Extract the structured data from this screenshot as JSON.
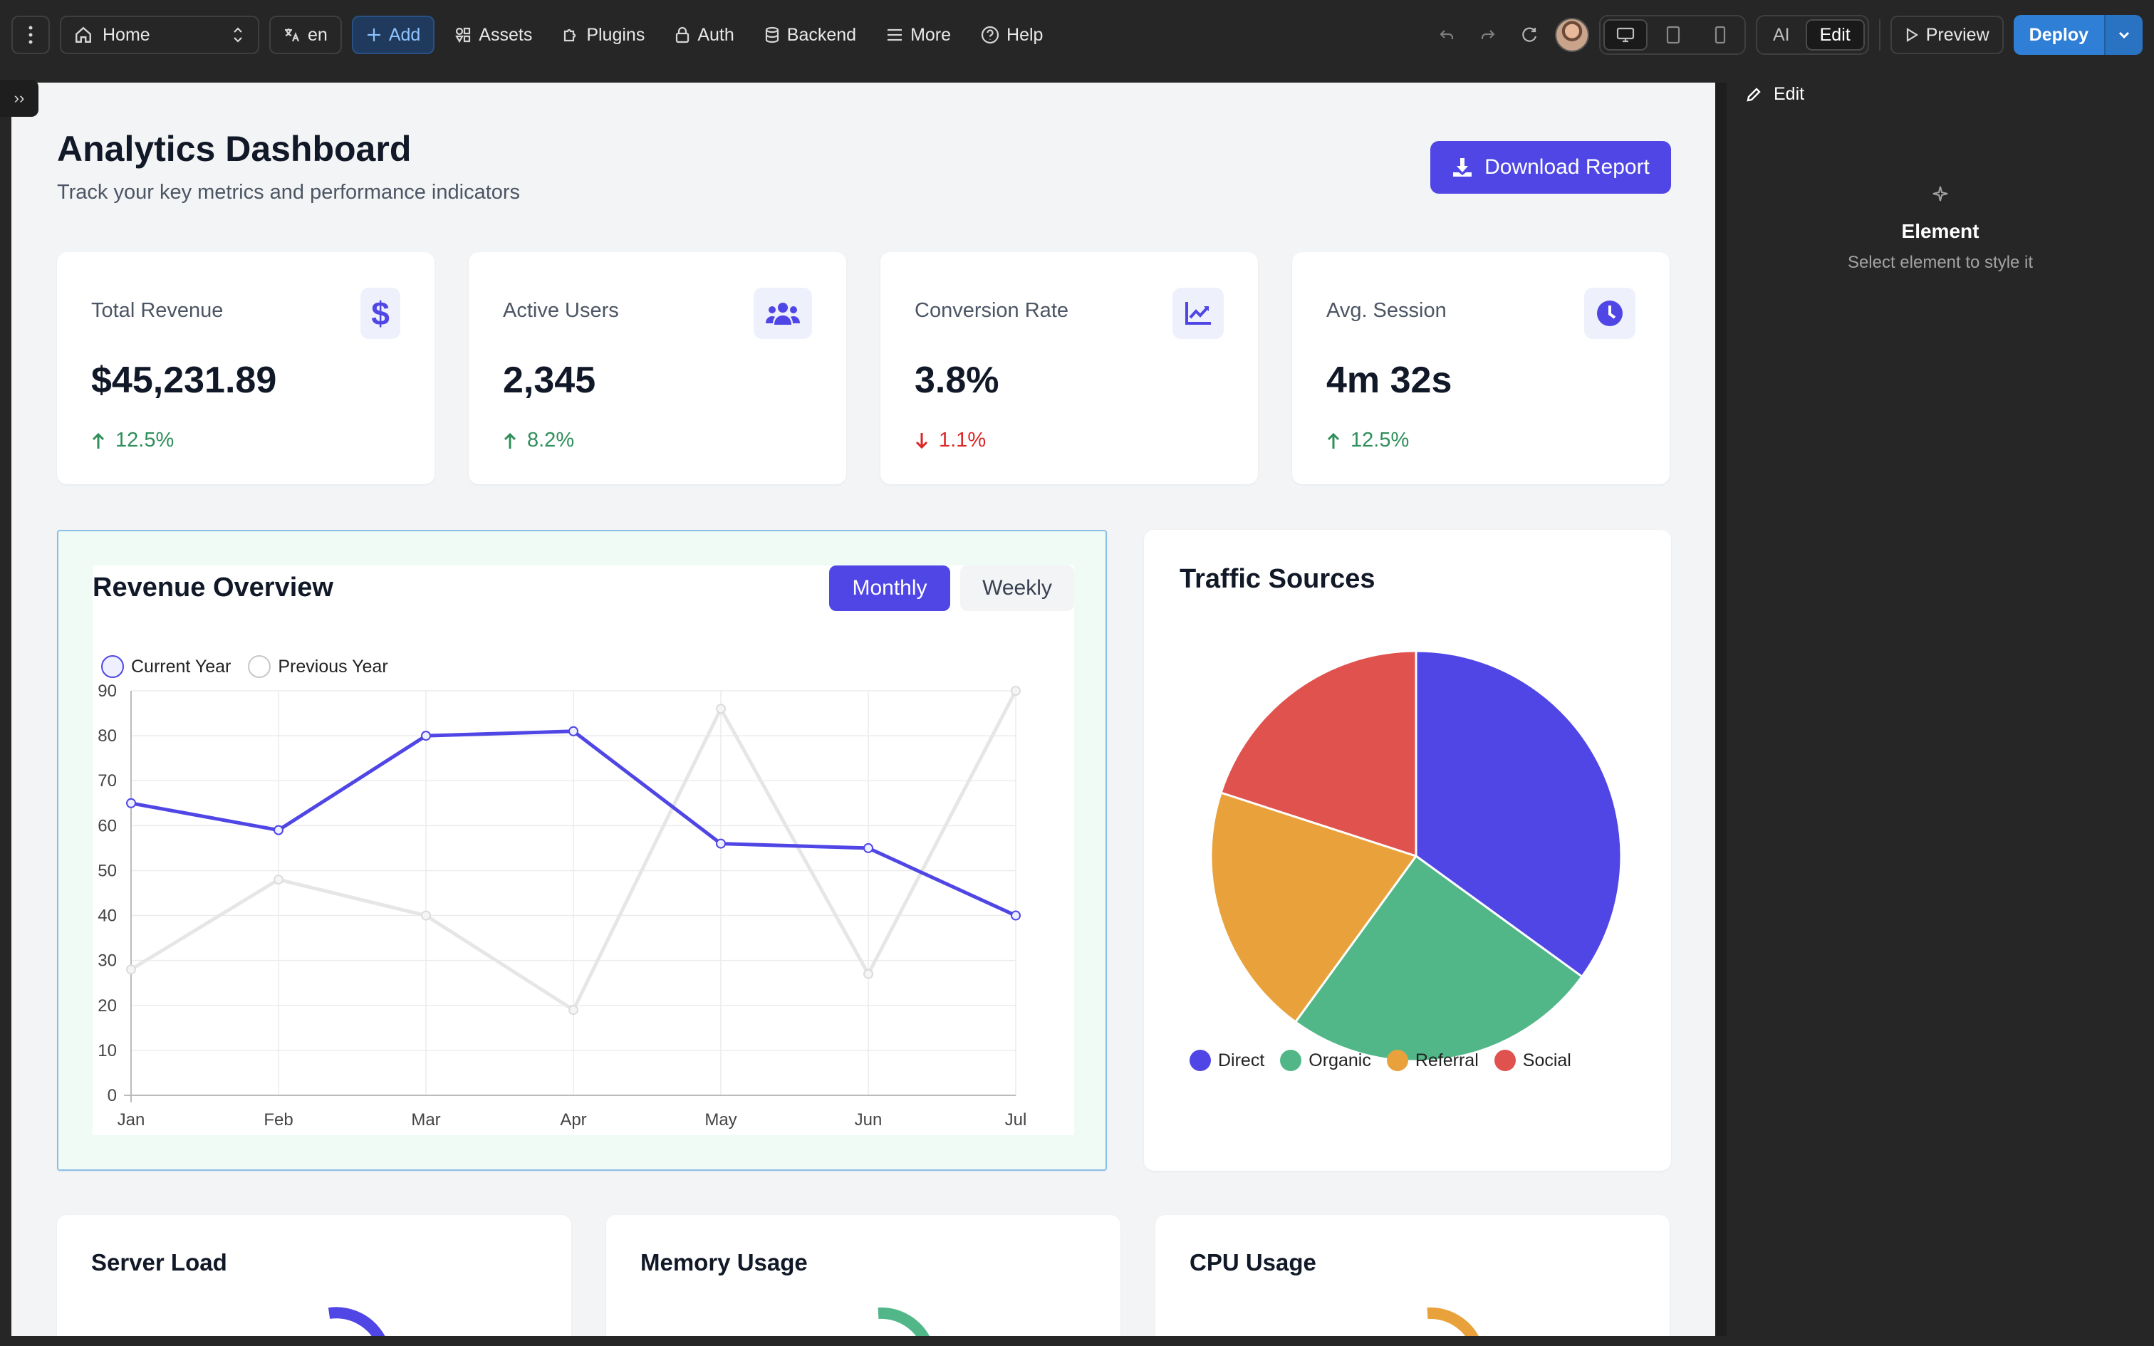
{
  "toolbar": {
    "page_select": "Home",
    "language": "en",
    "add": "Add",
    "assets": "Assets",
    "plugins": "Plugins",
    "auth": "Auth",
    "backend": "Backend",
    "more": "More",
    "help": "Help",
    "mode_ai": "AI",
    "mode_edit": "Edit",
    "preview": "Preview",
    "deploy": "Deploy"
  },
  "right_panel": {
    "tab": "Edit",
    "empty_title": "Element",
    "empty_sub": "Select element to style it"
  },
  "dashboard": {
    "title": "Analytics Dashboard",
    "subtitle": "Track your key metrics and performance indicators",
    "download": "Download Report",
    "stats": [
      {
        "label": "Total Revenue",
        "value": "$45,231.89",
        "change": "12.5%",
        "direction": "up",
        "icon": "dollar-icon"
      },
      {
        "label": "Active Users",
        "value": "2,345",
        "change": "8.2%",
        "direction": "up",
        "icon": "users-icon"
      },
      {
        "label": "Conversion Rate",
        "value": "3.8%",
        "change": "1.1%",
        "direction": "down",
        "icon": "chart-line-icon"
      },
      {
        "label": "Avg. Session",
        "value": "4m 32s",
        "change": "12.5%",
        "direction": "up",
        "icon": "clock-icon"
      }
    ],
    "revenue": {
      "title": "Revenue Overview",
      "toggle_monthly": "Monthly",
      "toggle_weekly": "Weekly",
      "legend_current": "Current Year",
      "legend_previous": "Previous Year"
    },
    "traffic": {
      "title": "Traffic Sources"
    },
    "bottom": {
      "server": "Server Load",
      "memory": "Memory Usage",
      "cpu": "CPU Usage"
    }
  },
  "colors": {
    "accent": "#4f46e5",
    "up": "#2f8f5b",
    "down": "#dc2626",
    "direct": "#4f46e5",
    "organic": "#52b788",
    "referral": "#e9a23b",
    "social": "#e0524d"
  },
  "chart_data": [
    {
      "type": "line",
      "x": [
        "Jan",
        "Feb",
        "Mar",
        "Apr",
        "May",
        "Jun",
        "Jul"
      ],
      "series": [
        {
          "name": "Current Year",
          "values": [
            65,
            59,
            80,
            81,
            56,
            55,
            40
          ]
        },
        {
          "name": "Previous Year",
          "values": [
            28,
            48,
            40,
            19,
            86,
            27,
            90
          ]
        }
      ],
      "ylim": [
        0,
        90
      ],
      "yticks": [
        0,
        10,
        20,
        30,
        40,
        50,
        60,
        70,
        80,
        90
      ],
      "grid": true,
      "legend": "top-left"
    },
    {
      "type": "pie",
      "categories": [
        "Direct",
        "Organic",
        "Referral",
        "Social"
      ],
      "values": [
        35,
        25,
        20,
        20
      ],
      "legend": "bottom"
    }
  ]
}
